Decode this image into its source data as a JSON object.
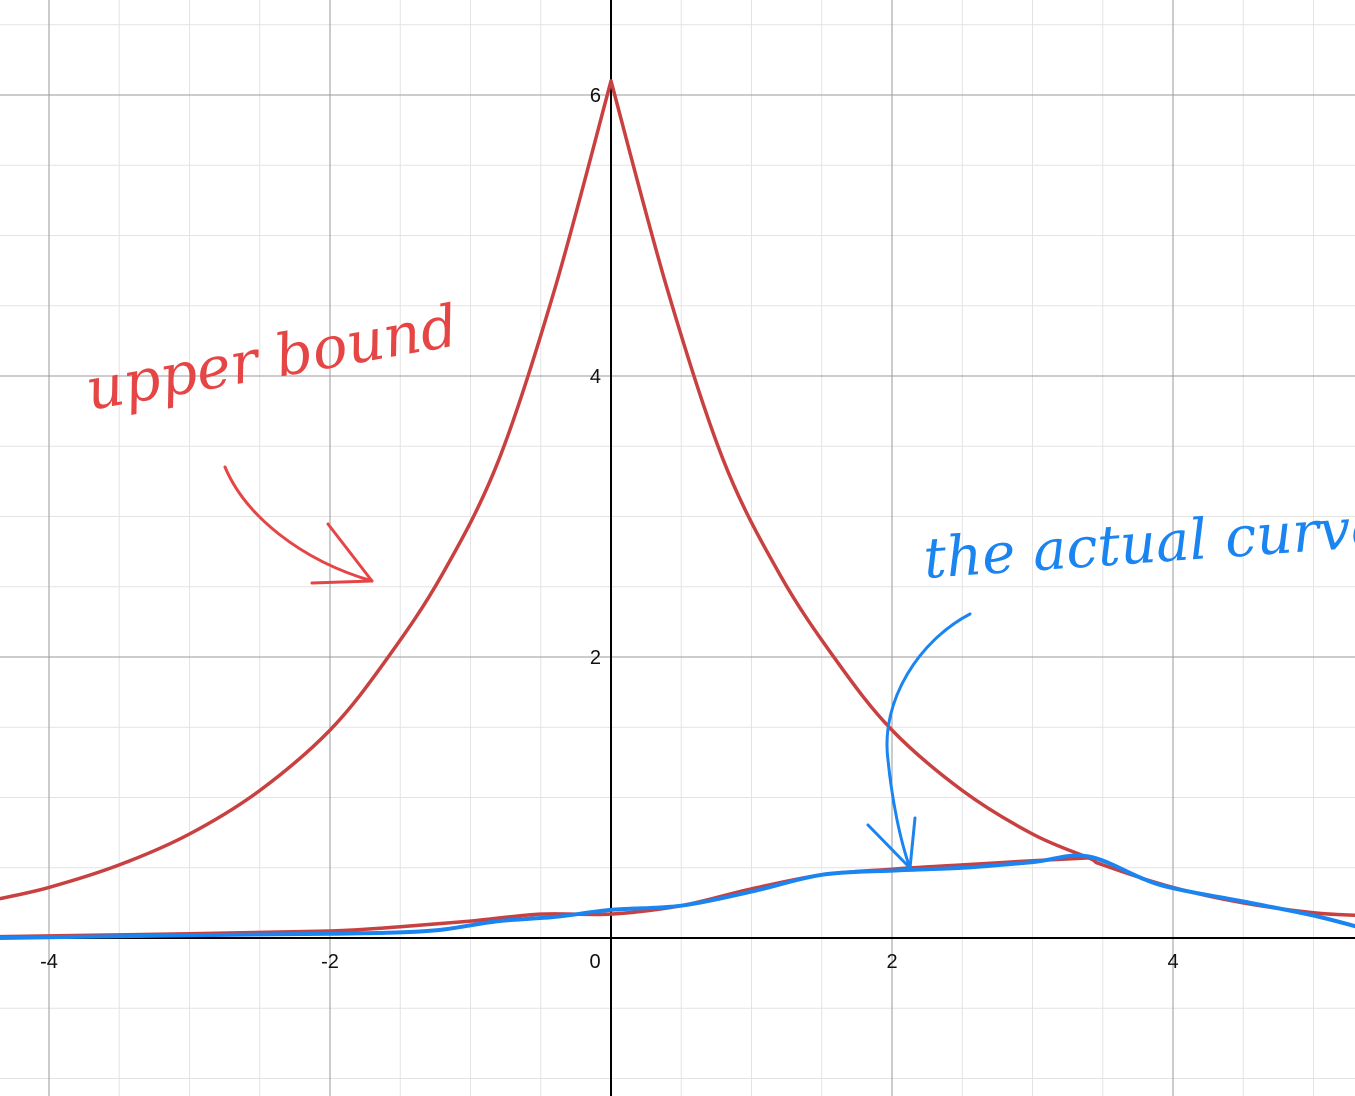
{
  "chart_data": {
    "type": "line",
    "grid": true,
    "xlim": [
      -4.35,
      5.35
    ],
    "ylim": [
      -1.12,
      6.7
    ],
    "x_ticks": [
      -4,
      -2,
      0,
      2,
      4
    ],
    "y_ticks": [
      2,
      4,
      6
    ],
    "x_tick_labels": [
      "-4",
      "-2",
      "0",
      "2",
      "4"
    ],
    "y_tick_labels": [
      "2",
      "4",
      "6"
    ],
    "series": [
      {
        "color": "#c94040",
        "x": [
          -4.35,
          -4,
          -3.5,
          -3,
          -2.5,
          -2,
          -1.6,
          -1.2,
          -0.8,
          -0.4,
          0,
          0.4,
          0.8,
          1.2,
          1.6,
          2,
          2.5,
          3,
          3.4,
          3.5,
          4,
          4.5,
          5,
          5.35
        ],
        "y": [
          0.28,
          0.36,
          0.52,
          0.74,
          1.05,
          1.48,
          1.98,
          2.59,
          3.4,
          4.62,
          6.1,
          4.62,
          3.4,
          2.59,
          1.98,
          1.48,
          1.05,
          0.74,
          0.57,
          0.52,
          0.36,
          0.25,
          0.18,
          0.16
        ]
      },
      {
        "color": "#c94040",
        "x": [
          -4.35,
          -3,
          -2,
          -1.5,
          -1,
          -0.5,
          0,
          0.5,
          1,
          1.5,
          2,
          2.5,
          3,
          3.4
        ],
        "y": [
          0.01,
          0.03,
          0.05,
          0.08,
          0.12,
          0.17,
          0.17,
          0.23,
          0.35,
          0.45,
          0.49,
          0.52,
          0.55,
          0.57
        ]
      },
      {
        "color": "#1a84f0",
        "x": [
          -4.35,
          -3,
          -2,
          -1.5,
          -1.2,
          -0.8,
          -0.4,
          0,
          0.5,
          1,
          1.5,
          2,
          2.5,
          3,
          3.4,
          3.9,
          4.5,
          5,
          5.35
        ],
        "y": [
          0,
          0.02,
          0.03,
          0.04,
          0.06,
          0.12,
          0.15,
          0.2,
          0.23,
          0.33,
          0.45,
          0.48,
          0.5,
          0.54,
          0.58,
          0.38,
          0.26,
          0.16,
          0.07
        ]
      }
    ],
    "annotations": [
      {
        "text": "upper bound",
        "color": "#e64545"
      },
      {
        "text": "the actual curve",
        "color": "#1a84f0"
      }
    ]
  }
}
